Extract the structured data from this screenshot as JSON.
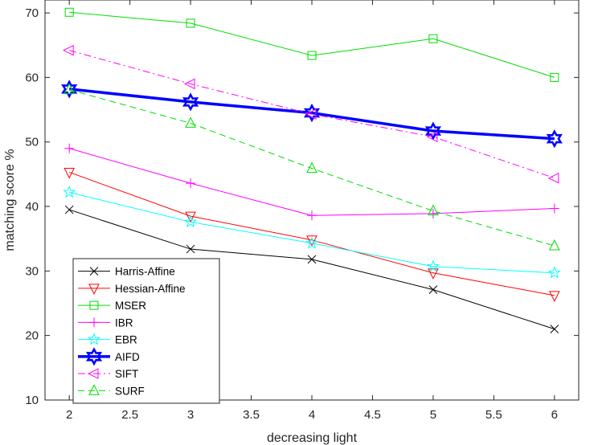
{
  "chart_data": {
    "type": "line",
    "title": "",
    "xlabel": "decreasing light",
    "ylabel": "matching score %",
    "xlim": [
      1.8,
      6.2
    ],
    "ylim": [
      10,
      72
    ],
    "xticks": [
      2,
      2.5,
      3,
      3.5,
      4,
      4.5,
      5,
      5.5,
      6
    ],
    "xtick_labels": [
      "2",
      "2.5",
      "3",
      "3.5",
      "4",
      "4.5",
      "5",
      "5.5",
      "6"
    ],
    "yticks": [
      10,
      20,
      30,
      40,
      50,
      60,
      70
    ],
    "ytick_labels": [
      "10",
      "20",
      "30",
      "40",
      "50",
      "60",
      "70"
    ],
    "grid": false,
    "legend_position": "bottom-left",
    "x": [
      2,
      3,
      4,
      5,
      6
    ],
    "series": [
      {
        "name": "Harris-Affine",
        "color": "#000000",
        "marker": "x",
        "dash": "solid",
        "width": 1,
        "values": [
          39.5,
          33.4,
          31.8,
          27.1,
          21.0
        ]
      },
      {
        "name": "Hessian-Affine",
        "color": "#ff0000",
        "marker": "triangle-down",
        "dash": "solid",
        "width": 1,
        "values": [
          45.3,
          38.5,
          34.8,
          29.7,
          26.2
        ]
      },
      {
        "name": "MSER",
        "color": "#00dd00",
        "marker": "square",
        "dash": "solid",
        "width": 1,
        "values": [
          70.1,
          68.4,
          63.4,
          66.0,
          60.0
        ]
      },
      {
        "name": "IBR",
        "color": "#ff00ff",
        "marker": "plus",
        "dash": "solid",
        "width": 1,
        "values": [
          49.0,
          43.6,
          38.6,
          38.9,
          39.7
        ]
      },
      {
        "name": "EBR",
        "color": "#00ffff",
        "marker": "star",
        "dash": "solid",
        "width": 1,
        "values": [
          42.2,
          37.6,
          34.3,
          30.7,
          29.7
        ]
      },
      {
        "name": "AIFD",
        "color": "#0000ff",
        "marker": "hexagram",
        "dash": "solid",
        "width": 3.5,
        "values": [
          58.2,
          56.2,
          54.5,
          51.7,
          50.5
        ]
      },
      {
        "name": "SIFT",
        "color": "#ff00ff",
        "marker": "triangle-left",
        "dash": "dashdot",
        "width": 1,
        "values": [
          64.2,
          59.0,
          54.3,
          50.8,
          44.4
        ]
      },
      {
        "name": "SURF",
        "color": "#00dd00",
        "marker": "triangle-up",
        "dash": "dashed",
        "width": 1,
        "values": [
          58.1,
          52.9,
          45.9,
          39.3,
          33.9
        ]
      }
    ]
  }
}
